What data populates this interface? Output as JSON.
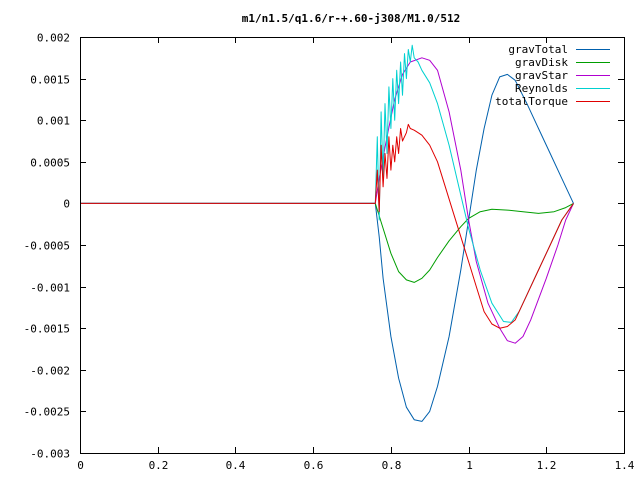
{
  "chart_data": {
    "type": "line",
    "title": "m1/n1.5/q1.6/r-+.60-j308/M1.0/512",
    "xlabel": "",
    "ylabel": "",
    "xlim": [
      0,
      1.4
    ],
    "ylim": [
      -0.003,
      0.002
    ],
    "grid": false,
    "legend_position": "top-right",
    "x_ticks": [
      0,
      0.2,
      0.4,
      0.6,
      0.8,
      1,
      1.2,
      1.4
    ],
    "x_tick_labels": [
      "0",
      "0.2",
      "0.4",
      "0.6",
      "0.8",
      "1",
      "1.2",
      "1.4"
    ],
    "y_ticks": [
      -0.003,
      -0.0025,
      -0.002,
      -0.0015,
      -0.001,
      -0.0005,
      0,
      0.0005,
      0.001,
      0.0015,
      0.002
    ],
    "y_tick_labels": [
      "-0.003",
      "-0.0025",
      "-0.002",
      "-0.0015",
      "-0.001",
      "-0.0005",
      "0",
      "0.0005",
      "0.001",
      "0.0015",
      "0.002"
    ],
    "series": [
      {
        "name": "gravTotal",
        "color": "#0060ad",
        "points": [
          [
            0,
            0
          ],
          [
            0.76,
            0
          ],
          [
            0.77,
            -0.0004
          ],
          [
            0.78,
            -0.0009
          ],
          [
            0.8,
            -0.0016
          ],
          [
            0.82,
            -0.0021
          ],
          [
            0.84,
            -0.00245
          ],
          [
            0.86,
            -0.0026
          ],
          [
            0.88,
            -0.00262
          ],
          [
            0.9,
            -0.0025
          ],
          [
            0.92,
            -0.0022
          ],
          [
            0.95,
            -0.0016
          ],
          [
            0.98,
            -0.0008
          ],
          [
            1.0,
            -0.0002
          ],
          [
            1.02,
            0.0004
          ],
          [
            1.04,
            0.0009
          ],
          [
            1.06,
            0.0013
          ],
          [
            1.08,
            0.00152
          ],
          [
            1.1,
            0.00155
          ],
          [
            1.12,
            0.00148
          ],
          [
            1.15,
            0.0012
          ],
          [
            1.18,
            0.0009
          ],
          [
            1.21,
            0.0006
          ],
          [
            1.24,
            0.0003
          ],
          [
            1.27,
            0
          ]
        ]
      },
      {
        "name": "gravDisk",
        "color": "#009e00",
        "points": [
          [
            0,
            0
          ],
          [
            0.76,
            0
          ],
          [
            0.78,
            -0.0003
          ],
          [
            0.8,
            -0.0006
          ],
          [
            0.82,
            -0.00082
          ],
          [
            0.84,
            -0.00092
          ],
          [
            0.86,
            -0.00095
          ],
          [
            0.88,
            -0.0009
          ],
          [
            0.9,
            -0.0008
          ],
          [
            0.92,
            -0.00065
          ],
          [
            0.95,
            -0.00045
          ],
          [
            0.98,
            -0.00028
          ],
          [
            1.0,
            -0.00018
          ],
          [
            1.03,
            -0.0001
          ],
          [
            1.06,
            -7e-05
          ],
          [
            1.1,
            -8e-05
          ],
          [
            1.14,
            -0.0001
          ],
          [
            1.18,
            -0.00012
          ],
          [
            1.22,
            -0.0001
          ],
          [
            1.25,
            -5e-05
          ],
          [
            1.27,
            0
          ]
        ]
      },
      {
        "name": "gravStar",
        "color": "#b000d0",
        "points": [
          [
            0,
            0
          ],
          [
            0.76,
            0
          ],
          [
            0.77,
            0.0003
          ],
          [
            0.79,
            0.0008
          ],
          [
            0.81,
            0.00125
          ],
          [
            0.83,
            0.00155
          ],
          [
            0.85,
            0.0017
          ],
          [
            0.88,
            0.00175
          ],
          [
            0.9,
            0.00172
          ],
          [
            0.92,
            0.0016
          ],
          [
            0.95,
            0.0011
          ],
          [
            0.98,
            0.0004
          ],
          [
            1.0,
            -0.0002
          ],
          [
            1.02,
            -0.0007
          ],
          [
            1.05,
            -0.0012
          ],
          [
            1.08,
            -0.0015
          ],
          [
            1.1,
            -0.00165
          ],
          [
            1.12,
            -0.00168
          ],
          [
            1.14,
            -0.0016
          ],
          [
            1.16,
            -0.0014
          ],
          [
            1.2,
            -0.0009
          ],
          [
            1.23,
            -0.0005
          ],
          [
            1.25,
            -0.0002
          ],
          [
            1.27,
            0
          ]
        ]
      },
      {
        "name": "Reynolds",
        "color": "#00d0d0",
        "points": [
          [
            0,
            0
          ],
          [
            0.76,
            0
          ],
          [
            0.765,
            0.0008
          ],
          [
            0.77,
            -0.0002
          ],
          [
            0.775,
            0.0011
          ],
          [
            0.78,
            0.0003
          ],
          [
            0.785,
            0.0012
          ],
          [
            0.79,
            0.0006
          ],
          [
            0.795,
            0.0014
          ],
          [
            0.8,
            0.0009
          ],
          [
            0.805,
            0.0015
          ],
          [
            0.81,
            0.001
          ],
          [
            0.815,
            0.0016
          ],
          [
            0.82,
            0.0012
          ],
          [
            0.825,
            0.0017
          ],
          [
            0.83,
            0.0013
          ],
          [
            0.835,
            0.0018
          ],
          [
            0.84,
            0.0015
          ],
          [
            0.845,
            0.00185
          ],
          [
            0.85,
            0.0017
          ],
          [
            0.855,
            0.0019
          ],
          [
            0.86,
            0.00175
          ],
          [
            0.87,
            0.0017
          ],
          [
            0.88,
            0.0016
          ],
          [
            0.9,
            0.00145
          ],
          [
            0.92,
            0.0012
          ],
          [
            0.95,
            0.0007
          ],
          [
            0.98,
            0.0001
          ],
          [
            1.0,
            -0.0003
          ],
          [
            1.03,
            -0.0008
          ],
          [
            1.06,
            -0.0012
          ],
          [
            1.09,
            -0.00142
          ],
          [
            1.11,
            -0.00143
          ],
          [
            1.13,
            -0.0013
          ],
          [
            1.16,
            -0.001
          ],
          [
            1.2,
            -0.0006
          ],
          [
            1.24,
            -0.0002
          ],
          [
            1.27,
            0
          ]
        ]
      },
      {
        "name": "totalTorque",
        "color": "#e00000",
        "points": [
          [
            0,
            0
          ],
          [
            0.76,
            0
          ],
          [
            0.765,
            0.0004
          ],
          [
            0.77,
            -0.0001
          ],
          [
            0.775,
            0.0007
          ],
          [
            0.78,
            0.0002
          ],
          [
            0.785,
            0.0006
          ],
          [
            0.79,
            0.0003
          ],
          [
            0.795,
            0.0008
          ],
          [
            0.8,
            0.0004
          ],
          [
            0.805,
            0.0007
          ],
          [
            0.81,
            0.0005
          ],
          [
            0.815,
            0.0008
          ],
          [
            0.82,
            0.0006
          ],
          [
            0.825,
            0.0009
          ],
          [
            0.83,
            0.00075
          ],
          [
            0.84,
            0.00085
          ],
          [
            0.845,
            0.00095
          ],
          [
            0.85,
            0.0009
          ],
          [
            0.86,
            0.00088
          ],
          [
            0.87,
            0.00085
          ],
          [
            0.88,
            0.00082
          ],
          [
            0.9,
            0.0007
          ],
          [
            0.92,
            0.0005
          ],
          [
            0.94,
            0.0002
          ],
          [
            0.96,
            -0.0001
          ],
          [
            0.98,
            -0.0004
          ],
          [
            1.0,
            -0.0007
          ],
          [
            1.02,
            -0.001
          ],
          [
            1.04,
            -0.0013
          ],
          [
            1.06,
            -0.00145
          ],
          [
            1.08,
            -0.0015
          ],
          [
            1.1,
            -0.00148
          ],
          [
            1.12,
            -0.0014
          ],
          [
            1.15,
            -0.0011
          ],
          [
            1.18,
            -0.0008
          ],
          [
            1.21,
            -0.0005
          ],
          [
            1.24,
            -0.0002
          ],
          [
            1.27,
            0
          ]
        ]
      }
    ]
  }
}
